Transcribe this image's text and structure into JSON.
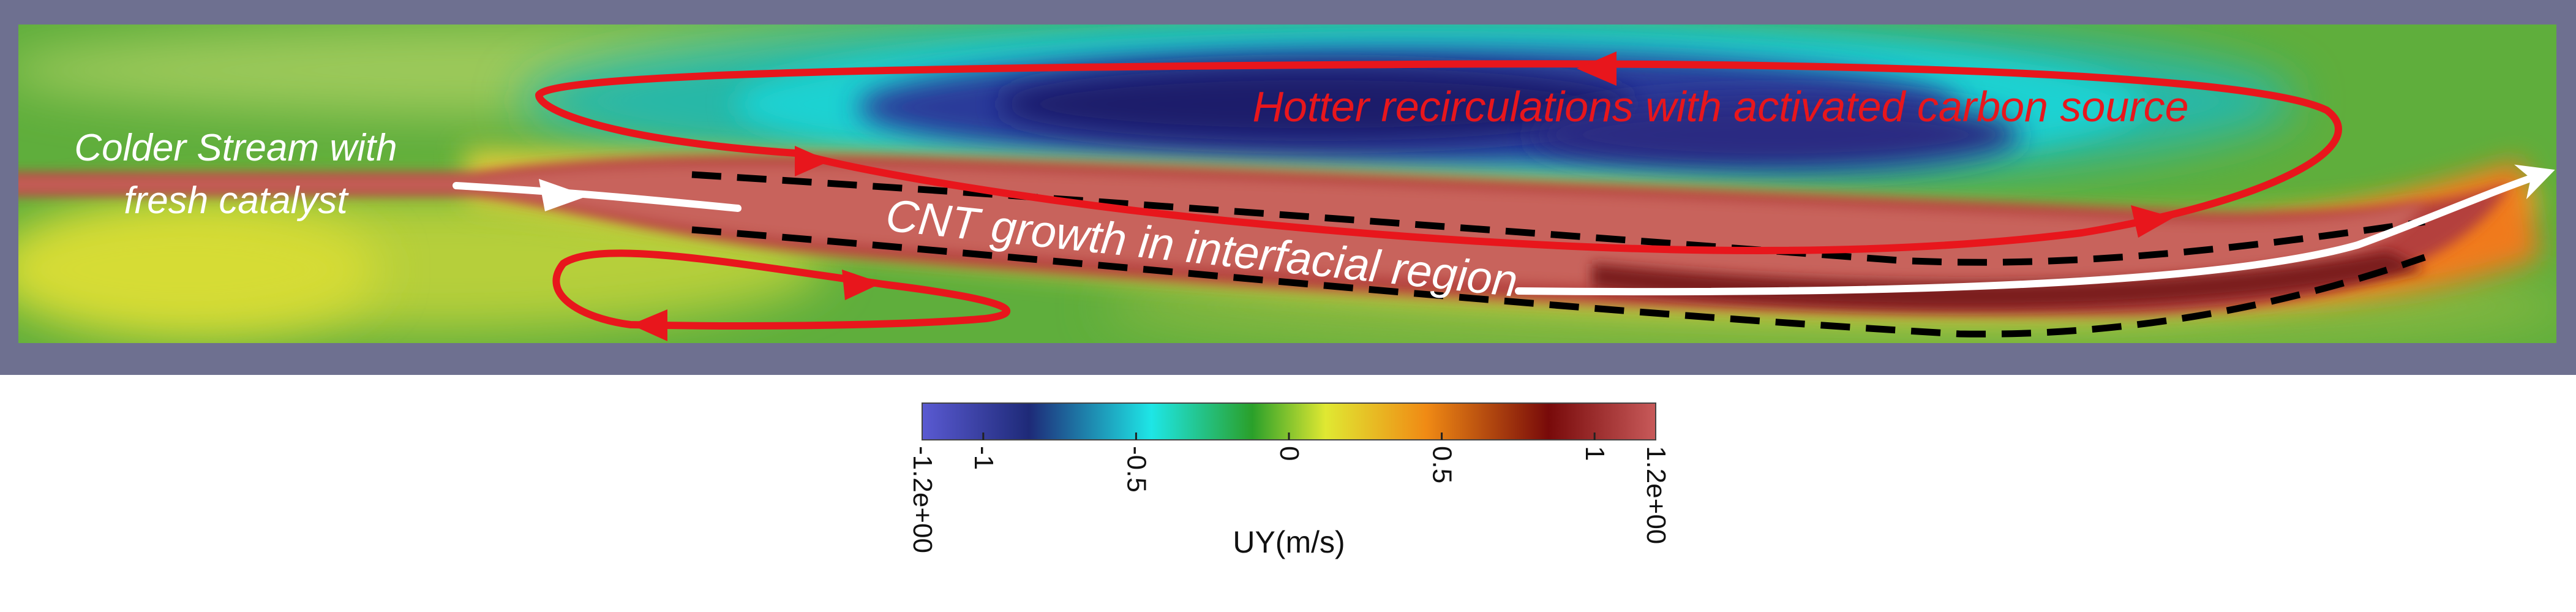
{
  "annotations": {
    "inlet_line1": "Colder Stream with",
    "inlet_line2": "fresh catalyst",
    "recirculation": "Hotter recirculations with activated carbon source",
    "growth": "CNT growth in interfacial region"
  },
  "colorbar": {
    "title": "UY(m/s)",
    "min_label": "-1.2e+00",
    "max_label": "1.2e+00",
    "ticks": [
      {
        "value": -1,
        "label": "-1"
      },
      {
        "value": -0.5,
        "label": "-0.5"
      },
      {
        "value": 0,
        "label": "0"
      },
      {
        "value": 0.5,
        "label": "0.5"
      },
      {
        "value": 1,
        "label": "1"
      }
    ],
    "range": [
      -1.2,
      1.2
    ],
    "stops": [
      {
        "value": -1.2,
        "color": "#5a5ad2"
      },
      {
        "value": -0.85,
        "color": "#1e2a78"
      },
      {
        "value": -0.45,
        "color": "#1ee6e6"
      },
      {
        "value": -0.12,
        "color": "#2aa02a"
      },
      {
        "value": 0.12,
        "color": "#e0e832"
      },
      {
        "value": 0.45,
        "color": "#f08a14"
      },
      {
        "value": 0.85,
        "color": "#780a0a"
      },
      {
        "value": 1.2,
        "color": "#c85a5a"
      }
    ]
  },
  "colors": {
    "annotation_red": "#e8161c",
    "annotation_white": "#ffffff",
    "dashed_line": "#000000",
    "wall": "#6e7090"
  }
}
